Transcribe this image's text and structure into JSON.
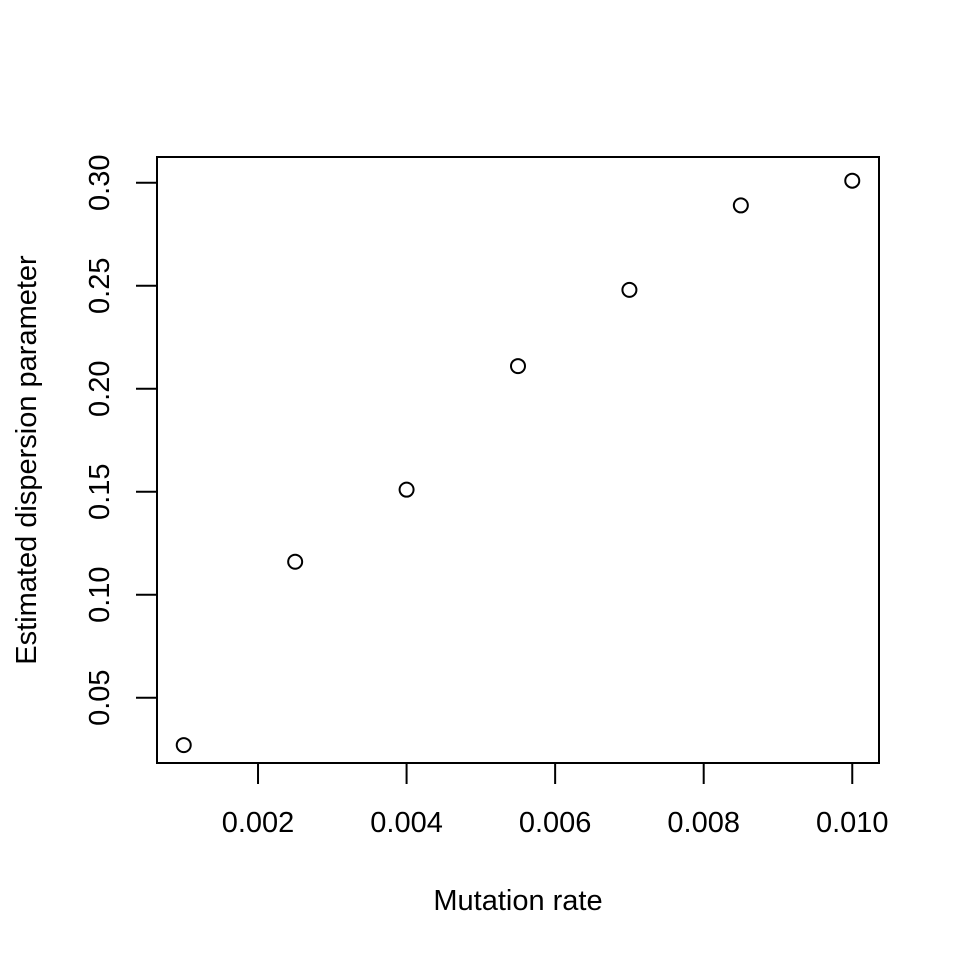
{
  "chart_data": {
    "type": "scatter",
    "title": "",
    "xlabel": "Mutation rate",
    "ylabel": "Estimated dispersion parameter",
    "x": [
      0.001,
      0.0025,
      0.004,
      0.0055,
      0.007,
      0.0085,
      0.01
    ],
    "y": [
      0.027,
      0.116,
      0.151,
      0.211,
      0.248,
      0.289,
      0.301
    ],
    "xlim": [
      0.00064,
      0.01036
    ],
    "ylim": [
      0.0183,
      0.3125
    ],
    "x_ticks": [
      "0.002",
      "0.004",
      "0.006",
      "0.008",
      "0.010"
    ],
    "x_tick_values": [
      0.002,
      0.004,
      0.006,
      0.008,
      0.01
    ],
    "y_ticks": [
      "0.05",
      "0.10",
      "0.15",
      "0.20",
      "0.25",
      "0.30"
    ],
    "y_tick_values": [
      0.05,
      0.1,
      0.15,
      0.2,
      0.25,
      0.3
    ],
    "marker": "open-circle",
    "grid": false,
    "legend": "none",
    "colors": {
      "marker_stroke": "#000000",
      "axis": "#000000",
      "background": "#ffffff"
    }
  }
}
